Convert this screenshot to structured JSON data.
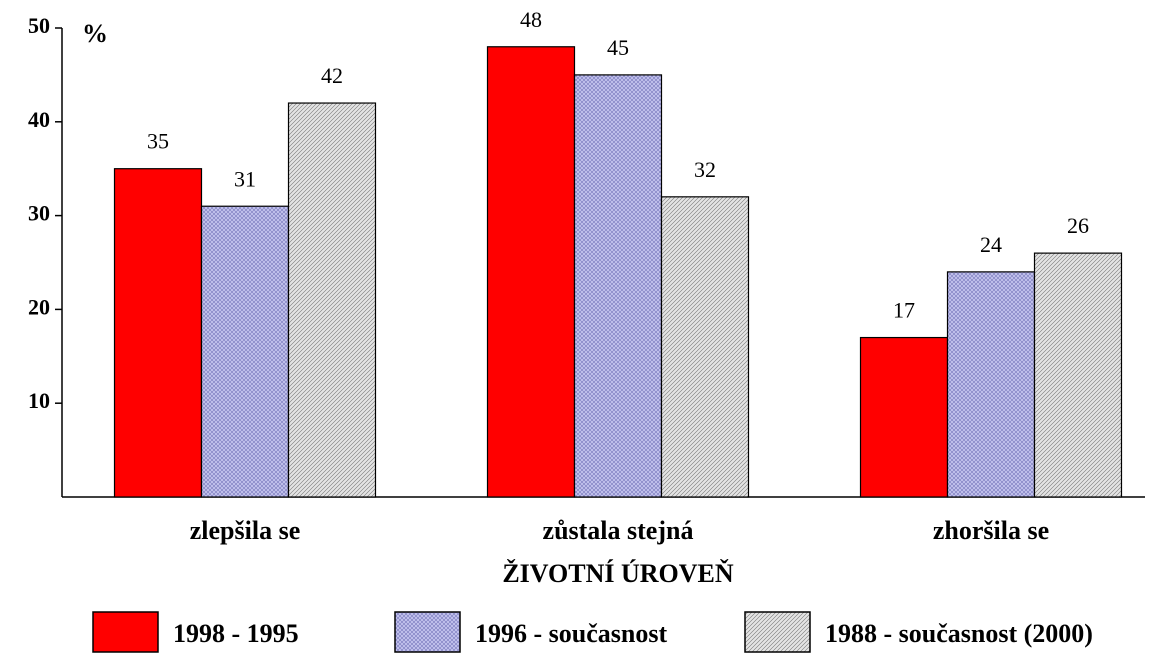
{
  "chart_data": {
    "type": "bar",
    "y_label": "%",
    "x_label": "ŽIVOTNÍ ÚROVEŇ",
    "categories": [
      "zlepšila se",
      "zůstala stejná",
      "zhoršila se"
    ],
    "series": [
      {
        "name": "1998 - 1995",
        "color": "#ff0000",
        "pattern": "solid",
        "values": [
          35,
          48,
          17
        ]
      },
      {
        "name": "1996 - současnost",
        "color": "#c4c4ee",
        "pattern": "crosshatch",
        "values": [
          31,
          45,
          24
        ]
      },
      {
        "name": "1988 - současnost (2000)",
        "color": "#e4e4e4",
        "pattern": "diagonal",
        "values": [
          42,
          32,
          26
        ]
      }
    ],
    "ylim": [
      0,
      50
    ],
    "yticks": [
      10,
      20,
      30,
      40,
      50
    ],
    "grid": false,
    "legend": "bottom"
  }
}
